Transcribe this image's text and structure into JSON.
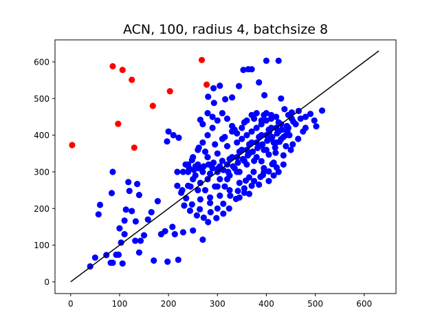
{
  "chart_data": {
    "type": "scatter",
    "title": "ACN, 100, radius 4, batchsize 8",
    "xlabel": "",
    "ylabel": "",
    "xlim": [
      -32,
      665
    ],
    "ylim": [
      -32,
      660
    ],
    "xticks": [
      0,
      100,
      200,
      300,
      400,
      500,
      600
    ],
    "yticks": [
      0,
      100,
      200,
      300,
      400,
      500,
      600
    ],
    "grid": false,
    "colors": {
      "normal": "#0000ff",
      "outlier": "#ff0000",
      "fit_line": "#000000"
    },
    "series": [
      {
        "color": "#ff0000",
        "points": [
          [
            3,
            373
          ],
          [
            86,
            588
          ],
          [
            106,
            578
          ],
          [
            125,
            551
          ],
          [
            97,
            431
          ],
          [
            130,
            366
          ],
          [
            168,
            480
          ],
          [
            203,
            520
          ],
          [
            268,
            605
          ],
          [
            278,
            538
          ]
        ]
      },
      {
        "color": "#0000ff",
        "points": [
          [
            40,
            42
          ],
          [
            50,
            66
          ],
          [
            57,
            184
          ],
          [
            60,
            210
          ],
          [
            73,
            73
          ],
          [
            82,
            52
          ],
          [
            86,
            52
          ],
          [
            84,
            242
          ],
          [
            86,
            300
          ],
          [
            93,
            74
          ],
          [
            98,
            74
          ],
          [
            100,
            146
          ],
          [
            103,
            107
          ],
          [
            106,
            50
          ],
          [
            110,
            130
          ],
          [
            113,
            197
          ],
          [
            118,
            272
          ],
          [
            120,
            248
          ],
          [
            110,
            167
          ],
          [
            125,
            193
          ],
          [
            132,
            112
          ],
          [
            136,
            267
          ],
          [
            140,
            237
          ],
          [
            133,
            165
          ],
          [
            140,
            80
          ],
          [
            143,
            112
          ],
          [
            150,
            127
          ],
          [
            158,
            170
          ],
          [
            165,
            190
          ],
          [
            170,
            58
          ],
          [
            178,
            220
          ],
          [
            185,
            130
          ],
          [
            193,
            138
          ],
          [
            198,
            55
          ],
          [
            208,
            150
          ],
          [
            213,
            130
          ],
          [
            220,
            60
          ],
          [
            230,
            135
          ],
          [
            250,
            140
          ],
          [
            270,
            115
          ],
          [
            197,
            383
          ],
          [
            200,
            410
          ],
          [
            210,
            400
          ],
          [
            221,
            393
          ],
          [
            218,
            300
          ],
          [
            228,
            250
          ],
          [
            240,
            262
          ],
          [
            248,
            332
          ],
          [
            255,
            315
          ],
          [
            262,
            366
          ],
          [
            265,
            442
          ],
          [
            280,
            460
          ],
          [
            281,
            505
          ],
          [
            292,
            528
          ],
          [
            293,
            488
          ],
          [
            305,
            535
          ],
          [
            316,
            498
          ],
          [
            330,
            503
          ],
          [
            344,
            534
          ],
          [
            353,
            578
          ],
          [
            363,
            580
          ],
          [
            370,
            580
          ],
          [
            385,
            544
          ],
          [
            396,
            509
          ],
          [
            400,
            603
          ],
          [
            425,
            603
          ],
          [
            406,
            409
          ],
          [
            430,
            500
          ],
          [
            437,
            471
          ],
          [
            452,
            462
          ],
          [
            466,
            466
          ],
          [
            490,
            458
          ],
          [
            502,
            424
          ],
          [
            514,
            467
          ],
          [
            480,
            420
          ],
          [
            498,
            440
          ],
          [
            447,
            400
          ],
          [
            454,
            375
          ],
          [
            427,
            382
          ],
          [
            419,
            352
          ],
          [
            412,
            321
          ],
          [
            405,
            301
          ],
          [
            393,
            291
          ],
          [
            388,
            286
          ],
          [
            421,
            312
          ],
          [
            370,
            262
          ],
          [
            355,
            243
          ],
          [
            338,
            226
          ],
          [
            324,
            200
          ],
          [
            312,
            186
          ],
          [
            298,
            174
          ],
          [
            281,
            163
          ],
          [
            264,
            198
          ],
          [
            248,
            211
          ],
          [
            236,
            228
          ],
          [
            226,
            243
          ],
          [
            218,
            262
          ],
          [
            232,
            208
          ],
          [
            244,
            194
          ],
          [
            258,
            181
          ],
          [
            272,
            175
          ],
          [
            286,
            190
          ],
          [
            300,
            200
          ],
          [
            312,
            213
          ],
          [
            326,
            235
          ],
          [
            342,
            248
          ],
          [
            358,
            276
          ],
          [
            374,
            300
          ],
          [
            390,
            329
          ],
          [
            405,
            347
          ],
          [
            418,
            366
          ],
          [
            430,
            389
          ],
          [
            443,
            411
          ],
          [
            455,
            437
          ],
          [
            240,
            300
          ],
          [
            250,
            280
          ],
          [
            260,
            320
          ],
          [
            270,
            300
          ],
          [
            280,
            340
          ],
          [
            290,
            310
          ],
          [
            300,
            350
          ],
          [
            310,
            330
          ],
          [
            320,
            370
          ],
          [
            330,
            340
          ],
          [
            340,
            380
          ],
          [
            350,
            360
          ],
          [
            360,
            400
          ],
          [
            370,
            380
          ],
          [
            380,
            420
          ],
          [
            390,
            400
          ],
          [
            400,
            440
          ],
          [
            410,
            420
          ],
          [
            420,
            450
          ],
          [
            430,
            430
          ],
          [
            250,
            340
          ],
          [
            260,
            360
          ],
          [
            270,
            380
          ],
          [
            280,
            400
          ],
          [
            290,
            420
          ],
          [
            300,
            440
          ],
          [
            310,
            460
          ],
          [
            320,
            445
          ],
          [
            330,
            425
          ],
          [
            340,
            405
          ],
          [
            350,
            420
          ],
          [
            360,
            440
          ],
          [
            370,
            455
          ],
          [
            380,
            460
          ],
          [
            390,
            440
          ],
          [
            400,
            460
          ],
          [
            410,
            455
          ],
          [
            245,
            260
          ],
          [
            255,
            290
          ],
          [
            265,
            270
          ],
          [
            275,
            250
          ],
          [
            285,
            230
          ],
          [
            295,
            260
          ],
          [
            305,
            280
          ],
          [
            315,
            260
          ],
          [
            325,
            290
          ],
          [
            335,
            310
          ],
          [
            345,
            300
          ],
          [
            355,
            330
          ],
          [
            365,
            350
          ],
          [
            375,
            330
          ],
          [
            385,
            370
          ],
          [
            395,
            360
          ],
          [
            405,
            390
          ],
          [
            415,
            380
          ],
          [
            425,
            410
          ],
          [
            435,
            395
          ],
          [
            445,
            420
          ],
          [
            240,
            320
          ],
          [
            260,
            250
          ],
          [
            280,
            280
          ],
          [
            300,
            300
          ],
          [
            320,
            320
          ],
          [
            340,
            340
          ],
          [
            360,
            360
          ],
          [
            380,
            380
          ],
          [
            400,
            400
          ],
          [
            420,
            420
          ],
          [
            300,
            260
          ],
          [
            320,
            280
          ],
          [
            340,
            300
          ],
          [
            360,
            320
          ],
          [
            380,
            340
          ],
          [
            400,
            360
          ],
          [
            420,
            380
          ],
          [
            440,
            400
          ],
          [
            310,
            390
          ],
          [
            330,
            410
          ],
          [
            350,
            390
          ],
          [
            370,
            410
          ],
          [
            390,
            430
          ],
          [
            410,
            445
          ],
          [
            270,
            430
          ],
          [
            290,
            450
          ],
          [
            230,
            300
          ],
          [
            235,
            320
          ],
          [
            242,
            310
          ],
          [
            252,
            305
          ],
          [
            262,
            310
          ],
          [
            272,
            315
          ],
          [
            282,
            320
          ],
          [
            292,
            325
          ],
          [
            302,
            310
          ],
          [
            312,
            305
          ],
          [
            322,
            300
          ],
          [
            332,
            315
          ],
          [
            342,
            325
          ],
          [
            352,
            335
          ],
          [
            362,
            345
          ],
          [
            372,
            355
          ],
          [
            382,
            365
          ],
          [
            392,
            375
          ],
          [
            402,
            385
          ],
          [
            412,
            395
          ],
          [
            422,
            405
          ],
          [
            432,
            415
          ],
          [
            442,
            425
          ],
          [
            452,
            445
          ],
          [
            275,
            355
          ],
          [
            295,
            375
          ],
          [
            315,
            395
          ],
          [
            335,
            415
          ],
          [
            355,
            435
          ],
          [
            375,
            445
          ],
          [
            395,
            455
          ],
          [
            285,
            295
          ],
          [
            305,
            315
          ],
          [
            325,
            335
          ],
          [
            345,
            355
          ],
          [
            365,
            375
          ],
          [
            385,
            395
          ],
          [
            405,
            415
          ],
          [
            425,
            435
          ],
          [
            445,
            455
          ],
          [
            355,
            255
          ],
          [
            375,
            275
          ],
          [
            395,
            300
          ],
          [
            415,
            325
          ],
          [
            435,
            345
          ],
          [
            450,
            360
          ],
          [
            465,
            390
          ],
          [
            475,
            410
          ],
          [
            440,
            370
          ],
          [
            460,
            430
          ],
          [
            470,
            445
          ],
          [
            480,
            450
          ],
          [
            365,
            285
          ],
          [
            345,
            270
          ],
          [
            325,
            250
          ],
          [
            305,
            235
          ],
          [
            285,
            215
          ],
          [
            265,
            225
          ],
          [
            345,
            230
          ],
          [
            365,
            240
          ],
          [
            385,
            265
          ],
          [
            405,
            275
          ],
          [
            415,
            290
          ],
          [
            425,
            300
          ],
          [
            435,
            320
          ],
          [
            395,
            310
          ]
        ]
      }
    ],
    "fit_line": {
      "x": [
        0,
        630
      ],
      "y": [
        0,
        630
      ]
    }
  }
}
